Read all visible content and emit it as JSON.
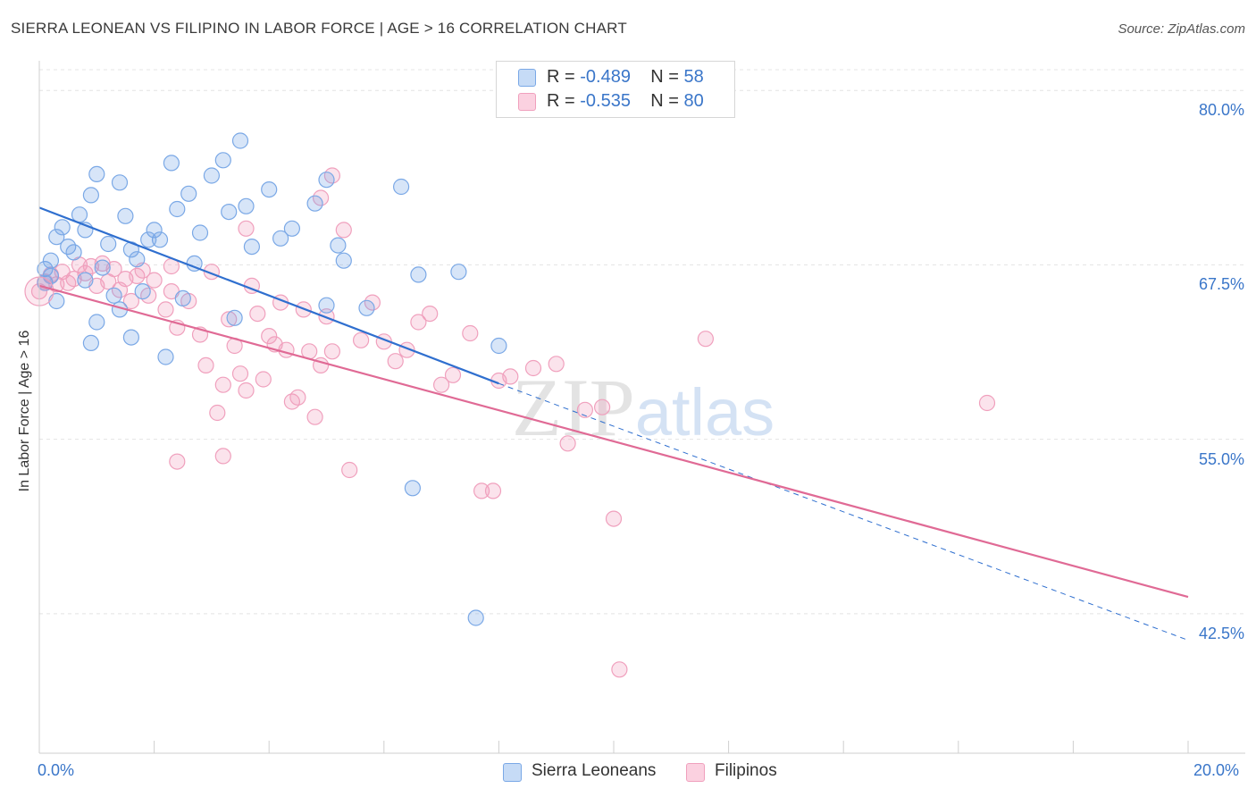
{
  "chart_data": {
    "type": "scatter",
    "title": "SIERRA LEONEAN VS FILIPINO IN LABOR FORCE | AGE > 16 CORRELATION CHART",
    "source": "Source: ZipAtlas.com",
    "ylabel": "In Labor Force | Age > 16",
    "xlabel": "",
    "xlim": [
      0,
      20
    ],
    "ylim": [
      32.5,
      82
    ],
    "x_tick_labels": [
      "0.0%",
      "20.0%"
    ],
    "y_ticks": [
      42.5,
      55.0,
      67.5,
      80.0
    ],
    "y_tick_labels": [
      "42.5%",
      "55.0%",
      "67.5%",
      "80.0%"
    ],
    "grid": true,
    "watermark": "ZIPatlas",
    "legend_position": "top-center",
    "series": [
      {
        "name": "Sierra Leoneans",
        "color": "#6fa3e6",
        "line_color": "#2f6fcf",
        "r_label": "R = ",
        "r_value": "-0.489",
        "n_label": "N = ",
        "n_value": "58",
        "trend": {
          "x0": 0,
          "y0": 71.6,
          "x_solid_end": 8.0,
          "y_solid_end": 59.0,
          "x_dash_end": 20,
          "y_dash_end": 40.6
        },
        "points": [
          [
            0.1,
            67.2
          ],
          [
            0.2,
            67.8
          ],
          [
            0.1,
            66.2
          ],
          [
            0.3,
            69.5
          ],
          [
            0.2,
            66.7
          ],
          [
            0.4,
            70.2
          ],
          [
            0.5,
            68.8
          ],
          [
            0.7,
            71.1
          ],
          [
            0.8,
            70.0
          ],
          [
            0.9,
            72.5
          ],
          [
            1.0,
            74.0
          ],
          [
            1.2,
            69.0
          ],
          [
            1.4,
            73.4
          ],
          [
            1.5,
            71.0
          ],
          [
            1.6,
            68.6
          ],
          [
            1.7,
            67.9
          ],
          [
            1.8,
            65.6
          ],
          [
            2.0,
            70.0
          ],
          [
            2.1,
            69.3
          ],
          [
            2.3,
            74.8
          ],
          [
            2.4,
            71.5
          ],
          [
            2.6,
            72.6
          ],
          [
            2.8,
            69.8
          ],
          [
            3.0,
            73.9
          ],
          [
            3.2,
            75.0
          ],
          [
            3.3,
            71.3
          ],
          [
            3.5,
            76.4
          ],
          [
            3.6,
            71.7
          ],
          [
            3.7,
            68.8
          ],
          [
            4.0,
            72.9
          ],
          [
            4.2,
            69.4
          ],
          [
            4.4,
            70.1
          ],
          [
            4.8,
            71.9
          ],
          [
            5.0,
            73.6
          ],
          [
            5.2,
            68.9
          ],
          [
            5.3,
            67.8
          ],
          [
            6.3,
            73.1
          ],
          [
            6.5,
            51.5
          ],
          [
            6.6,
            66.8
          ],
          [
            7.3,
            67.0
          ],
          [
            7.6,
            42.2
          ],
          [
            1.3,
            65.3
          ],
          [
            2.5,
            65.1
          ],
          [
            1.1,
            67.3
          ],
          [
            0.8,
            66.4
          ],
          [
            0.6,
            68.4
          ],
          [
            1.9,
            69.3
          ],
          [
            2.7,
            67.6
          ],
          [
            0.3,
            64.9
          ],
          [
            1.4,
            64.3
          ],
          [
            5.0,
            64.6
          ],
          [
            8.0,
            61.7
          ],
          [
            5.7,
            64.4
          ],
          [
            1.6,
            62.3
          ],
          [
            3.4,
            63.7
          ],
          [
            0.9,
            61.9
          ],
          [
            2.2,
            60.9
          ],
          [
            1.0,
            63.4
          ]
        ]
      },
      {
        "name": "Filipinos",
        "color": "#f29bb9",
        "line_color": "#e06a95",
        "r_label": "R = ",
        "r_value": "-0.535",
        "n_label": "N = ",
        "n_value": "80",
        "trend": {
          "x0": 0,
          "y0": 66.0,
          "x1": 20,
          "y1": 43.7
        },
        "points": [
          [
            0.0,
            65.6
          ],
          [
            0.1,
            66.3
          ],
          [
            0.2,
            66.8
          ],
          [
            0.3,
            66.1
          ],
          [
            0.4,
            67.0
          ],
          [
            0.5,
            66.2
          ],
          [
            0.6,
            66.5
          ],
          [
            0.7,
            67.5
          ],
          [
            0.8,
            66.9
          ],
          [
            0.9,
            67.4
          ],
          [
            1.0,
            66.0
          ],
          [
            1.1,
            67.6
          ],
          [
            1.2,
            66.3
          ],
          [
            1.3,
            67.2
          ],
          [
            1.4,
            65.7
          ],
          [
            1.5,
            66.5
          ],
          [
            1.6,
            64.9
          ],
          [
            1.7,
            66.7
          ],
          [
            1.8,
            67.1
          ],
          [
            1.9,
            65.3
          ],
          [
            2.0,
            66.4
          ],
          [
            2.2,
            64.3
          ],
          [
            2.3,
            65.6
          ],
          [
            2.4,
            63.0
          ],
          [
            2.6,
            64.9
          ],
          [
            2.8,
            62.5
          ],
          [
            2.9,
            60.3
          ],
          [
            3.0,
            67.0
          ],
          [
            3.1,
            56.9
          ],
          [
            3.2,
            58.9
          ],
          [
            3.3,
            63.6
          ],
          [
            3.4,
            61.7
          ],
          [
            3.5,
            59.7
          ],
          [
            3.6,
            58.5
          ],
          [
            3.7,
            66.0
          ],
          [
            3.8,
            64.0
          ],
          [
            3.9,
            59.3
          ],
          [
            4.0,
            62.4
          ],
          [
            4.1,
            61.8
          ],
          [
            4.2,
            64.8
          ],
          [
            4.3,
            61.4
          ],
          [
            4.4,
            57.7
          ],
          [
            4.5,
            58.0
          ],
          [
            4.6,
            64.3
          ],
          [
            4.7,
            61.3
          ],
          [
            4.8,
            56.6
          ],
          [
            4.9,
            60.3
          ],
          [
            5.0,
            63.8
          ],
          [
            5.1,
            61.3
          ],
          [
            5.3,
            70.0
          ],
          [
            5.4,
            52.8
          ],
          [
            5.6,
            62.1
          ],
          [
            5.8,
            64.8
          ],
          [
            6.0,
            62.0
          ],
          [
            6.2,
            60.6
          ],
          [
            6.4,
            61.4
          ],
          [
            6.6,
            63.4
          ],
          [
            6.8,
            64.0
          ],
          [
            7.0,
            58.9
          ],
          [
            7.2,
            59.6
          ],
          [
            7.5,
            62.6
          ],
          [
            7.7,
            51.3
          ],
          [
            7.9,
            51.3
          ],
          [
            8.0,
            59.2
          ],
          [
            8.2,
            59.5
          ],
          [
            8.6,
            60.1
          ],
          [
            9.0,
            60.4
          ],
          [
            9.2,
            54.7
          ],
          [
            9.5,
            57.1
          ],
          [
            9.8,
            57.3
          ],
          [
            10.0,
            49.3
          ],
          [
            10.1,
            38.5
          ],
          [
            11.6,
            62.2
          ],
          [
            16.5,
            57.6
          ],
          [
            2.3,
            67.4
          ],
          [
            3.6,
            70.1
          ],
          [
            4.9,
            72.3
          ],
          [
            5.1,
            73.9
          ],
          [
            2.4,
            53.4
          ],
          [
            3.2,
            53.8
          ]
        ]
      }
    ]
  },
  "legend_bottom": [
    {
      "label": "Sierra Leoneans",
      "color": "#6fa3e6"
    },
    {
      "label": "Filipinos",
      "color": "#f29bb9"
    }
  ]
}
